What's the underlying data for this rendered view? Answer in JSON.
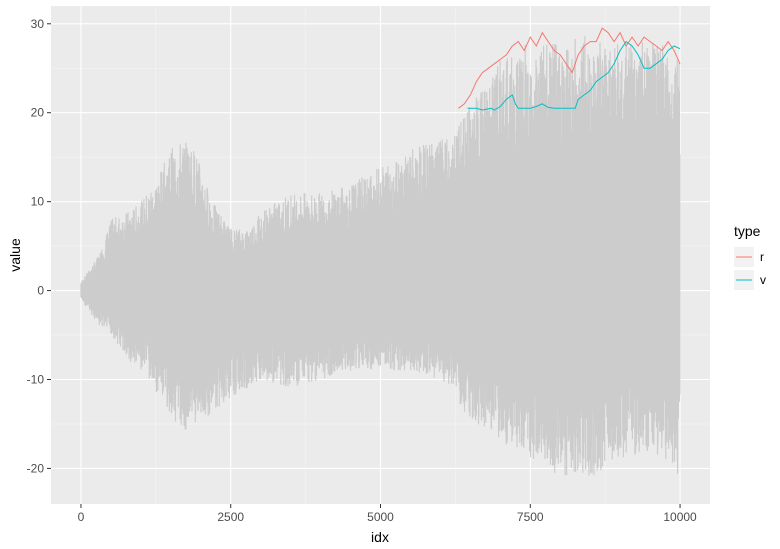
{
  "chart_data": {
    "type": "line",
    "xlabel": "idx",
    "ylabel": "value",
    "xlim": [
      -500,
      10500
    ],
    "ylim": [
      -24,
      32
    ],
    "x_ticks": [
      0,
      2500,
      5000,
      7500,
      10000
    ],
    "x_tick_labels": [
      "0",
      "2500",
      "5000",
      "7500",
      "10000"
    ],
    "y_ticks": [
      -20,
      -10,
      0,
      10,
      20,
      30
    ],
    "y_tick_labels": [
      "-20",
      "-10",
      "0",
      "10",
      "20",
      "30"
    ],
    "grid": true,
    "legend": {
      "title": "type",
      "position": "right"
    },
    "background": {
      "description": "dense gray oscillating series (raw values), envelope min/max by idx",
      "color": "#cccccc",
      "envelope": [
        {
          "x": 0,
          "min": -1,
          "max": 1
        },
        {
          "x": 300,
          "min": -4,
          "max": 4
        },
        {
          "x": 500,
          "min": -5,
          "max": 8
        },
        {
          "x": 800,
          "min": -8,
          "max": 9
        },
        {
          "x": 1000,
          "min": -9,
          "max": 10
        },
        {
          "x": 1300,
          "min": -12,
          "max": 13
        },
        {
          "x": 1500,
          "min": -14,
          "max": 16
        },
        {
          "x": 1700,
          "min": -16,
          "max": 17
        },
        {
          "x": 1900,
          "min": -15,
          "max": 16
        },
        {
          "x": 2200,
          "min": -14,
          "max": 10
        },
        {
          "x": 2500,
          "min": -12,
          "max": 7
        },
        {
          "x": 2800,
          "min": -11,
          "max": 7
        },
        {
          "x": 3000,
          "min": -10,
          "max": 9
        },
        {
          "x": 3500,
          "min": -11,
          "max": 11
        },
        {
          "x": 4000,
          "min": -10,
          "max": 11
        },
        {
          "x": 4500,
          "min": -9,
          "max": 12
        },
        {
          "x": 5000,
          "min": -9,
          "max": 14
        },
        {
          "x": 5500,
          "min": -9,
          "max": 16
        },
        {
          "x": 6000,
          "min": -10,
          "max": 17
        },
        {
          "x": 6200,
          "min": -11,
          "max": 17
        },
        {
          "x": 6400,
          "min": -14,
          "max": 20
        },
        {
          "x": 7000,
          "min": -17,
          "max": 26
        },
        {
          "x": 7500,
          "min": -19,
          "max": 28
        },
        {
          "x": 8000,
          "min": -21,
          "max": 28
        },
        {
          "x": 8500,
          "min": -21,
          "max": 29
        },
        {
          "x": 9000,
          "min": -19,
          "max": 28
        },
        {
          "x": 9500,
          "min": -18,
          "max": 28
        },
        {
          "x": 10000,
          "min": -21,
          "max": 27
        }
      ]
    },
    "series": [
      {
        "name": "r",
        "color": "#F8766D",
        "points": [
          [
            6300,
            20.5
          ],
          [
            6400,
            21.0
          ],
          [
            6500,
            22.0
          ],
          [
            6600,
            23.5
          ],
          [
            6700,
            24.5
          ],
          [
            6800,
            25.0
          ],
          [
            6900,
            25.5
          ],
          [
            7000,
            26.0
          ],
          [
            7100,
            26.5
          ],
          [
            7200,
            27.5
          ],
          [
            7300,
            28.0
          ],
          [
            7400,
            27.0
          ],
          [
            7500,
            28.5
          ],
          [
            7600,
            27.5
          ],
          [
            7700,
            29.0
          ],
          [
            7800,
            28.0
          ],
          [
            7900,
            27.0
          ],
          [
            8000,
            26.5
          ],
          [
            8100,
            25.5
          ],
          [
            8200,
            24.5
          ],
          [
            8300,
            26.5
          ],
          [
            8400,
            27.5
          ],
          [
            8500,
            28.0
          ],
          [
            8600,
            28.0
          ],
          [
            8700,
            29.5
          ],
          [
            8800,
            29.0
          ],
          [
            8900,
            28.0
          ],
          [
            9000,
            29.0
          ],
          [
            9100,
            27.5
          ],
          [
            9200,
            28.5
          ],
          [
            9300,
            27.5
          ],
          [
            9400,
            28.5
          ],
          [
            9500,
            28.0
          ],
          [
            9600,
            27.5
          ],
          [
            9700,
            27.0
          ],
          [
            9800,
            28.0
          ],
          [
            9900,
            27.0
          ],
          [
            10000,
            25.5
          ]
        ]
      },
      {
        "name": "v",
        "color": "#00BFC4",
        "points": [
          [
            6450,
            20.5
          ],
          [
            6600,
            20.5
          ],
          [
            6700,
            20.3
          ],
          [
            6850,
            20.5
          ],
          [
            6900,
            20.3
          ],
          [
            7000,
            20.7
          ],
          [
            7100,
            21.5
          ],
          [
            7200,
            22.0
          ],
          [
            7250,
            21.0
          ],
          [
            7300,
            20.5
          ],
          [
            7500,
            20.5
          ],
          [
            7600,
            20.7
          ],
          [
            7700,
            21.0
          ],
          [
            7800,
            20.6
          ],
          [
            7900,
            20.5
          ],
          [
            8000,
            20.5
          ],
          [
            8150,
            20.5
          ],
          [
            8250,
            20.5
          ],
          [
            8300,
            21.5
          ],
          [
            8400,
            22.0
          ],
          [
            8500,
            22.5
          ],
          [
            8600,
            23.5
          ],
          [
            8700,
            24.0
          ],
          [
            8800,
            24.5
          ],
          [
            8900,
            25.5
          ],
          [
            9000,
            27.0
          ],
          [
            9100,
            28.0
          ],
          [
            9200,
            27.5
          ],
          [
            9300,
            26.5
          ],
          [
            9400,
            25.0
          ],
          [
            9500,
            25.0
          ],
          [
            9600,
            25.5
          ],
          [
            9700,
            26.0
          ],
          [
            9800,
            27.0
          ],
          [
            9900,
            27.5
          ],
          [
            10000,
            27.2
          ]
        ]
      }
    ]
  }
}
